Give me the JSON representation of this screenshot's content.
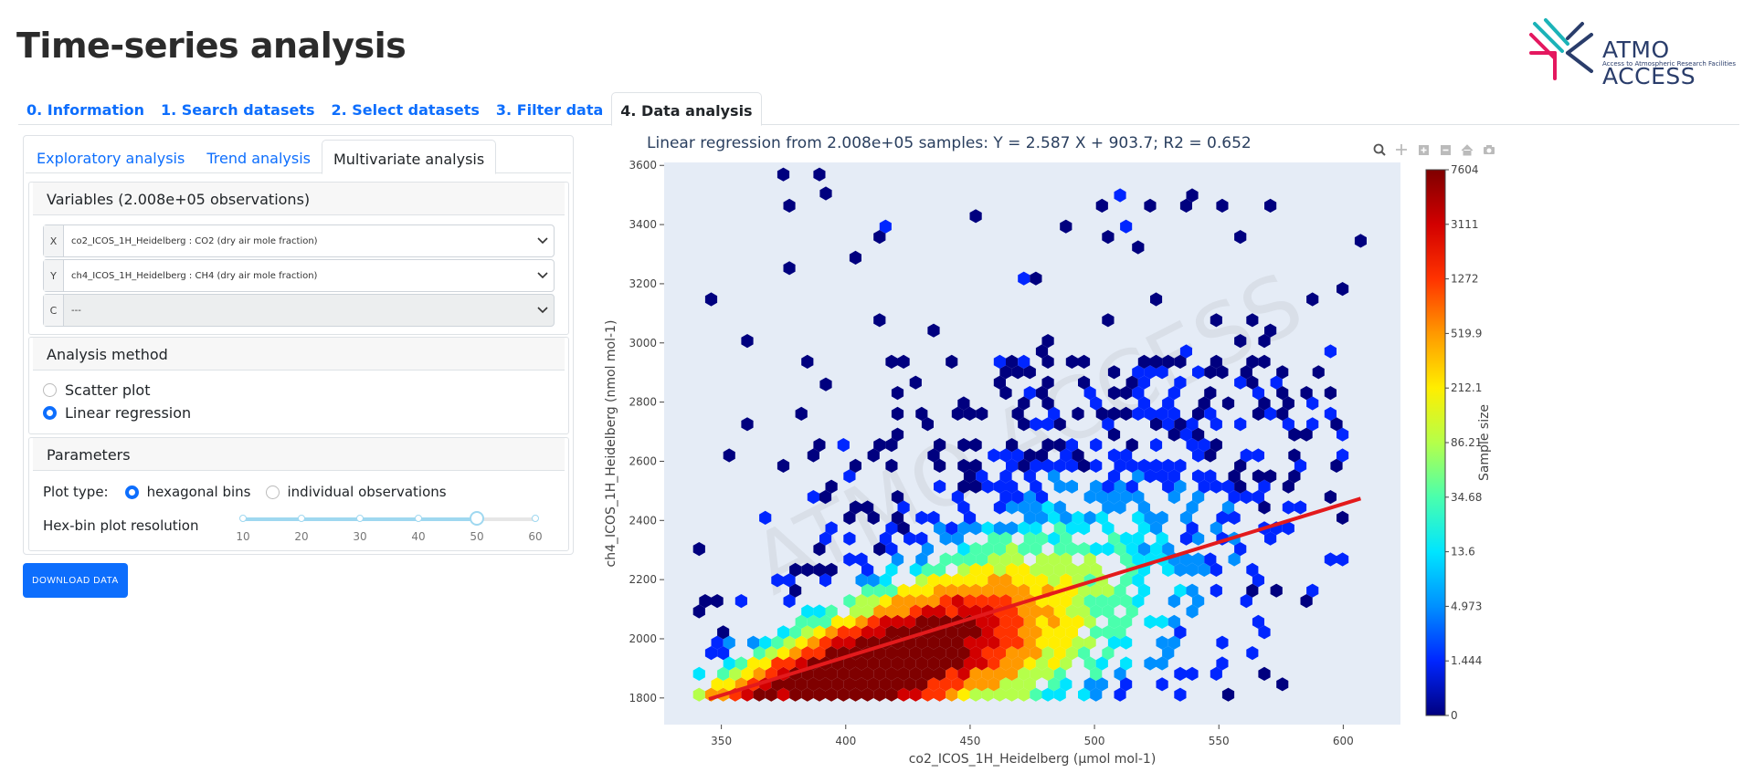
{
  "page": {
    "title": "Time-series analysis"
  },
  "logo": {
    "name": "ATMO ACCESS",
    "tagline": "Access to Atmospheric Research Facilities"
  },
  "main_tabs": [
    {
      "label": "0. Information",
      "active": false
    },
    {
      "label": "1. Search datasets",
      "active": false
    },
    {
      "label": "2. Select datasets",
      "active": false
    },
    {
      "label": "3. Filter data",
      "active": false
    },
    {
      "label": "4. Data analysis",
      "active": true
    }
  ],
  "sub_tabs": [
    {
      "label": "Exploratory analysis",
      "active": false
    },
    {
      "label": "Trend analysis",
      "active": false
    },
    {
      "label": "Multivariate analysis",
      "active": true
    }
  ],
  "variables": {
    "header": "Variables (2.008e+05 observations)",
    "x": {
      "label": "X",
      "value": "co2_ICOS_1H_Heidelberg : CO2 (dry air mole fraction)"
    },
    "y": {
      "label": "Y",
      "value": "ch4_ICOS_1H_Heidelberg : CH4 (dry air mole fraction)"
    },
    "c": {
      "label": "C",
      "value": "---"
    }
  },
  "method": {
    "header": "Analysis method",
    "options": [
      {
        "label": "Scatter plot",
        "checked": false
      },
      {
        "label": "Linear regression",
        "checked": true
      }
    ]
  },
  "parameters": {
    "header": "Parameters",
    "plot_type_label": "Plot type:",
    "plot_types": [
      {
        "label": "hexagonal bins",
        "checked": true
      },
      {
        "label": "individual observations",
        "checked": false
      }
    ],
    "resolution_label": "Hex-bin plot resolution",
    "slider_ticks": [
      "10",
      "20",
      "30",
      "40",
      "50",
      "60"
    ],
    "slider_value": 50,
    "slider_min": 10,
    "slider_max": 60
  },
  "download_label": "DOWNLOAD DATA",
  "chart_data": {
    "type": "heatmap",
    "title": "Linear regression from 2.008e+05 samples: Y = 2.587 X + 903.7; R2 = 0.652",
    "xlabel": "co2_ICOS_1H_Heidelberg (µmol mol-1)",
    "ylabel": "ch4_ICOS_1H_Heidelberg (nmol mol-1)",
    "xlim": [
      327,
      623
    ],
    "ylim": [
      1710,
      3610
    ],
    "x_ticks": [
      350,
      400,
      450,
      500,
      550,
      600
    ],
    "y_ticks": [
      1800,
      2000,
      2200,
      2400,
      2600,
      2800,
      3000,
      3200,
      3400,
      3600
    ],
    "regression": {
      "slope": 2.587,
      "intercept": 903.7,
      "r2": 0.652,
      "x_range": [
        345,
        607
      ]
    },
    "colorbar": {
      "title": "Sample size",
      "ticks": [
        "7604",
        "3111",
        "1272",
        "519.9",
        "212.1",
        "86.21",
        "34.68",
        "13.6",
        "4.973",
        "1.444",
        "0"
      ],
      "colors": [
        "#7f0000",
        "#d20000",
        "#ff3300",
        "#ff9900",
        "#ffee00",
        "#b5ff4a",
        "#4affad",
        "#00e5ff",
        "#0090ff",
        "#0026ff",
        "#00007f"
      ]
    },
    "watermark": "ATMO ACCESS",
    "hexbin": {
      "core_center_x": 410,
      "core_center_y": 1960,
      "outliers": [
        [
          392,
          3505
        ],
        [
          607,
          3345
        ],
        [
          392,
          2860
        ]
      ]
    }
  }
}
